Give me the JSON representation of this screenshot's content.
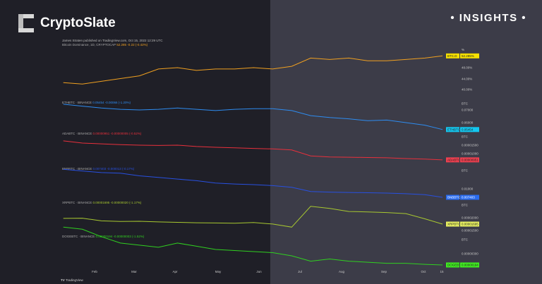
{
  "brand": {
    "name": "CryptoSlate",
    "section": "INSIGHTS"
  },
  "header": {
    "published": "James Straten published on TradingView.com, Oct 15, 2022 12:29 UTC",
    "footer": "TradingView"
  },
  "chart_data": {
    "type": "line",
    "xlabel": "",
    "ylabel": "",
    "x": [
      "2022-01-09",
      "2022-01-23",
      "2022-02-06",
      "2022-02-20",
      "2022-03-06",
      "2022-03-20",
      "2022-04-03",
      "2022-04-17",
      "2022-05-01",
      "2022-05-15",
      "2022-05-29",
      "2022-06-12",
      "2022-06-26",
      "2022-07-10",
      "2022-07-24",
      "2022-08-07",
      "2022-08-21",
      "2022-09-04",
      "2022-09-18",
      "2022-10-02",
      "2022-10-15"
    ],
    "x_tick_labels": [
      "Feb",
      "Mar",
      "Apr",
      "May",
      "Jun",
      "Jul",
      "Aug",
      "Sep",
      "Oct",
      "15"
    ],
    "series": [
      {
        "name": "BTC.D",
        "legend": "Bitcoin Dominance, 1D, CRYPTOCAP",
        "change": "52.285 -0.22 (-0.42%)",
        "color": "#f0a020",
        "badge_color": "#f5e000",
        "last": "52.285%",
        "unit": "%",
        "yticks": [
          "%",
          "48.00%",
          "44.00%",
          "40.00%"
        ],
        "values": [
          42.5,
          42,
          43,
          44,
          45,
          47.5,
          48,
          47,
          47.5,
          47.5,
          48,
          47.5,
          48.5,
          51.5,
          51,
          51.5,
          50.5,
          50.5,
          51,
          51.5,
          52.3
        ]
      },
      {
        "name": "ETHBTC",
        "legend": "ETHBTC · BINANCE",
        "change": "0.05454 -0.00066 (-1.20%)",
        "color": "#2e8cf0",
        "badge_color": "#14c8f0",
        "last": "0.05454",
        "yticks": [
          "BTC",
          "0.07000",
          "0.06000"
        ],
        "values": [
          0.0745,
          0.073,
          0.0715,
          0.0705,
          0.07,
          0.0705,
          0.0715,
          0.0705,
          0.0695,
          0.0705,
          0.071,
          0.071,
          0.0695,
          0.0655,
          0.064,
          0.063,
          0.0615,
          0.062,
          0.06,
          0.058,
          0.05454
        ]
      },
      {
        "name": "ADABTC",
        "legend": "ADABTC · BINANCE",
        "change": "0.00000951 -0.00000005 (-0.52%)",
        "color": "#e8303c",
        "badge_color": "#f04050",
        "last": "0.00000951",
        "yticks": [
          "BTC",
          "0.00001500",
          "0.00001000"
        ],
        "values": [
          1.66e-05,
          1.58e-05,
          1.55e-05,
          1.52e-05,
          1.5e-05,
          1.49e-05,
          1.5e-05,
          1.45e-05,
          1.42e-05,
          1.4e-05,
          1.38e-05,
          1.36e-05,
          1.32e-05,
          1.1e-05,
          1.06e-05,
          1.05e-05,
          1.04e-05,
          1.03e-05,
          1e-05,
          9.8e-06,
          9.51e-06
        ]
      },
      {
        "name": "BNBBTC",
        "legend": "BNBBTC · BINANCE",
        "change": "0.007403 -0.000013 (-0.17%)",
        "color": "#2850e0",
        "badge_color": "#2a6cf0",
        "last": "0.007403",
        "yticks": [
          "BTC",
          "0.01000"
        ],
        "values": [
          0.016,
          0.0155,
          0.015,
          0.0148,
          0.014,
          0.0135,
          0.013,
          0.0125,
          0.0118,
          0.0115,
          0.0113,
          0.011,
          0.0105,
          0.0092,
          0.009,
          0.0089,
          0.0088,
          0.0087,
          0.0085,
          0.0082,
          0.007403
        ]
      },
      {
        "name": "XRPBTC",
        "legend": "XRPBTC · BINANCE",
        "change": "0.00001695 -0.00000020 (-1.17%)",
        "color": "#a8c830",
        "badge_color": "#e8f060",
        "last": "0.00001695",
        "yticks": [
          "BTC",
          "0.00002000",
          "0.00001500"
        ],
        "values": [
          1.97e-05,
          1.98e-05,
          1.85e-05,
          1.82e-05,
          1.83e-05,
          1.8e-05,
          1.78e-05,
          1.76e-05,
          1.75e-05,
          1.74e-05,
          1.77e-05,
          1.7e-05,
          1.55e-05,
          2.55e-05,
          2.45e-05,
          2.3e-05,
          2.28e-05,
          2.25e-05,
          2.2e-05,
          1.95e-05,
          1.695e-05
        ]
      },
      {
        "name": "DOGEBTC",
        "legend": "DOGEBTC · BINANCE",
        "change": "0.00000194 -0.00000003 (-1.52%)",
        "color": "#30d020",
        "badge_color": "#40f020",
        "last": "0.00000194",
        "yticks": [
          "BTC",
          "0.00000300"
        ],
        "values": [
          5.5e-06,
          5.3e-06,
          4.6e-06,
          4e-06,
          3.8e-06,
          3.6e-06,
          4e-06,
          3.7e-06,
          3.4e-06,
          3.3e-06,
          3.2e-06,
          3.1e-06,
          2.8e-06,
          2.3e-06,
          2.5e-06,
          2.3e-06,
          2.2e-06,
          2.1e-06,
          2.1e-06,
          2e-06,
          1.94e-06
        ]
      }
    ]
  }
}
